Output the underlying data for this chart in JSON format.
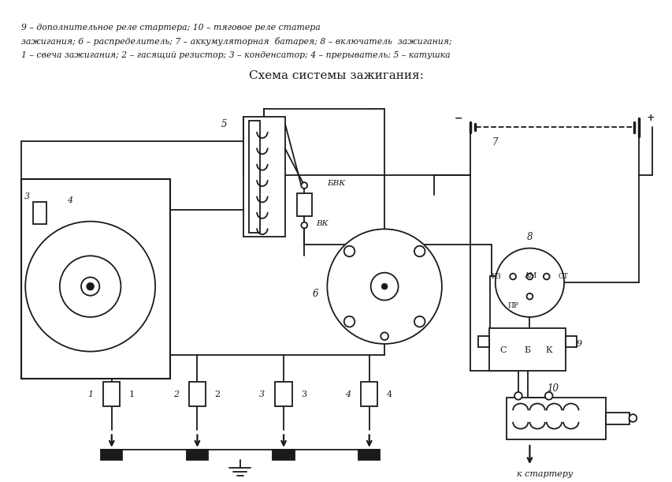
{
  "title": "Схема системы зажигания:",
  "caption_line1": "1 – свеча зажигания; 2 – гасящий резистор; 3 – конденсатор; 4 – прерыватель; 5 – катушка",
  "caption_line2": "зажигания; 6 – распределитель; 7 – аккумуляторная  батарея; 8 – включатель  зажигания;",
  "caption_line3": "9 – дополнительное реле стартера; 10 – тяговое реле статера",
  "bg_color": "#ffffff",
  "line_color": "#1a1a1a",
  "figsize": [
    8.54,
    6.11
  ],
  "dpi": 100
}
